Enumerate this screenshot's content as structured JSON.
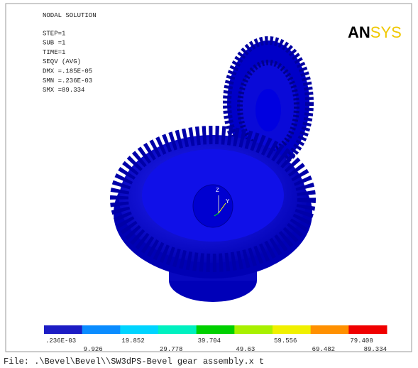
{
  "header": {
    "lines": [
      "NODAL SOLUTION",
      "STEP=1",
      "SUB =1",
      "TIME=1",
      "SEQV     (AVG)",
      "DMX =.185E-05",
      "SMN =.236E-03",
      "SMX =89.334"
    ]
  },
  "logo": {
    "dark": "AN",
    "light": "SYS"
  },
  "triad": {
    "z": "Z",
    "y": "Y"
  },
  "legend": {
    "colors": [
      "#1c1cc4",
      "#0a8cff",
      "#00d4ff",
      "#00f0c0",
      "#00d000",
      "#a8f000",
      "#f0f000",
      "#ff9000",
      "#f00000"
    ],
    "labels": [
      ".236E-03",
      "9.926",
      "19.852",
      "29.778",
      "39.704",
      "49.63",
      "59.556",
      "69.482",
      "79.408",
      "89.334"
    ]
  },
  "footer": "File: .\\Bevel\\Bevel\\\\SW3dPS-Bevel gear assembly.x t"
}
